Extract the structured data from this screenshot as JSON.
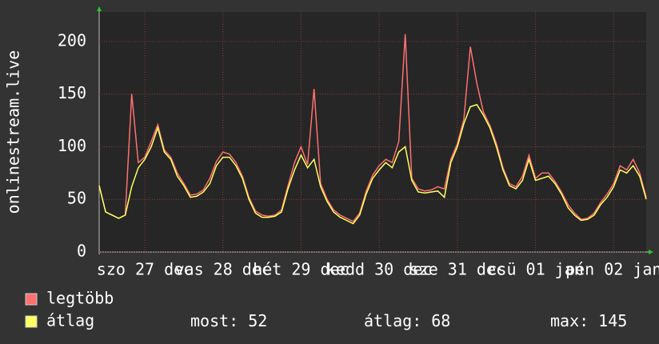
{
  "chart_data": {
    "type": "line",
    "y_label": "onlinestream.live",
    "ylim": [
      0,
      228
    ],
    "yticks": [
      0,
      50,
      100,
      150,
      200
    ],
    "grid": true,
    "categories": [
      null,
      null,
      null,
      null,
      null,
      null,
      null,
      "szo 27 dec",
      null,
      null,
      null,
      null,
      null,
      null,
      null,
      null,
      null,
      null,
      null,
      "vas 28 dec",
      null,
      null,
      null,
      null,
      null,
      null,
      null,
      null,
      null,
      null,
      null,
      "hét 29 dec",
      null,
      null,
      null,
      null,
      null,
      null,
      null,
      null,
      null,
      null,
      null,
      "kedd 30 dec",
      null,
      null,
      null,
      null,
      null,
      null,
      null,
      null,
      null,
      null,
      null,
      "sze 31 dec",
      null,
      null,
      null,
      null,
      null,
      null,
      null,
      null,
      null,
      null,
      null,
      "csü 01 jan",
      null,
      null,
      null,
      null,
      null,
      null,
      null,
      null,
      null,
      null,
      null,
      "pén 02 jan",
      null,
      null,
      null,
      null,
      null
    ],
    "series": [
      {
        "name": "legtöbb",
        "color": "#ff7070",
        "values": [
          63,
          38,
          35,
          32,
          35,
          150,
          85,
          90,
          105,
          121,
          97,
          90,
          75,
          65,
          54,
          55,
          59,
          70,
          86,
          95,
          93,
          85,
          72,
          52,
          39,
          35,
          34,
          35,
          40,
          63,
          85,
          100,
          83,
          155,
          65,
          50,
          40,
          35,
          32,
          29,
          37,
          58,
          73,
          82,
          88,
          85,
          105,
          207,
          70,
          60,
          58,
          59,
          62,
          60,
          88,
          103,
          126,
          195,
          160,
          133,
          120,
          103,
          80,
          65,
          62,
          72,
          92,
          70,
          75,
          75,
          67,
          57,
          45,
          37,
          31,
          32,
          37,
          47,
          55,
          65,
          82,
          78,
          88,
          75,
          52
        ]
      },
      {
        "name": "átlag",
        "color": "#ffff60",
        "values": [
          63,
          38,
          35,
          32,
          35,
          62,
          80,
          88,
          100,
          118,
          95,
          88,
          72,
          63,
          52,
          53,
          57,
          65,
          82,
          90,
          90,
          82,
          70,
          50,
          37,
          33,
          33,
          34,
          38,
          60,
          78,
          92,
          80,
          88,
          62,
          48,
          38,
          33,
          30,
          27,
          35,
          55,
          70,
          78,
          85,
          80,
          95,
          100,
          68,
          57,
          56,
          57,
          58,
          52,
          85,
          100,
          122,
          138,
          140,
          130,
          118,
          100,
          78,
          63,
          60,
          68,
          88,
          68,
          70,
          72,
          65,
          55,
          42,
          35,
          30,
          31,
          35,
          45,
          52,
          62,
          78,
          75,
          82,
          72,
          50
        ]
      }
    ],
    "stats": [
      {
        "label": "most:",
        "value": 52
      },
      {
        "label": "átlag:",
        "value": 68
      },
      {
        "label": "max:",
        "value": 145
      }
    ]
  }
}
